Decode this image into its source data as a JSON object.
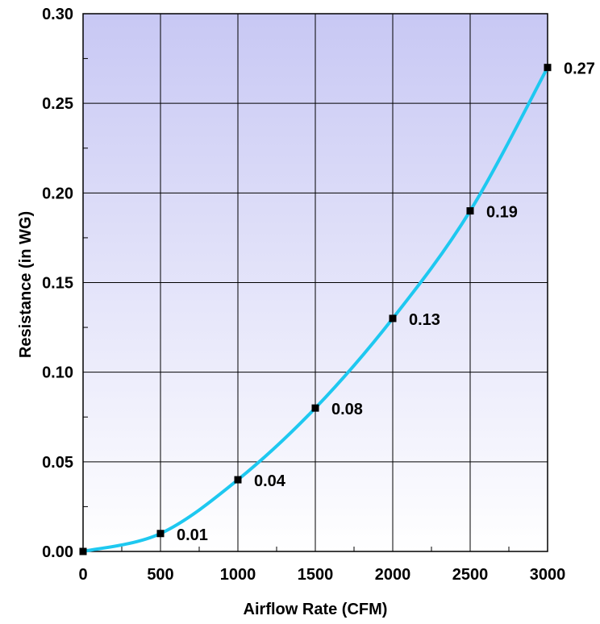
{
  "chart_data": {
    "type": "line",
    "title": "",
    "xlabel": "Airflow Rate (CFM)",
    "ylabel": "Resistance (in WG)",
    "xlim": [
      0,
      3000
    ],
    "ylim": [
      0,
      0.3
    ],
    "x_ticks": [
      "0",
      "500",
      "1000",
      "1500",
      "2000",
      "2500",
      "3000"
    ],
    "y_ticks": [
      "0.00",
      "0.05",
      "0.10",
      "0.15",
      "0.20",
      "0.25",
      "0.30"
    ],
    "grid": true,
    "legend": "none",
    "line_color": "#1ec8f0",
    "marker_color": "#000000",
    "background_gradient": [
      "#c8c8f4",
      "#ffffff"
    ],
    "series": [
      {
        "x": [
          0,
          500,
          1000,
          1500,
          2000,
          2500,
          3000
        ],
        "y": [
          0.0,
          0.01,
          0.04,
          0.08,
          0.13,
          0.19,
          0.27
        ],
        "labels": [
          "",
          "0.01",
          "0.04",
          "0.08",
          "0.13",
          "0.19",
          "0.27"
        ]
      }
    ]
  }
}
